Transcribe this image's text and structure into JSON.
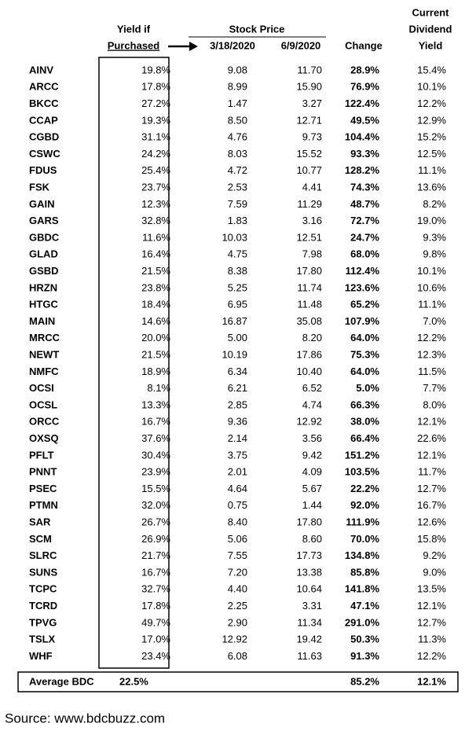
{
  "header": {
    "yield_line1": "Yield if",
    "yield_line2": "Purchased",
    "stock_price": "Stock Price",
    "date1": "3/18/2020",
    "date2": "6/9/2020",
    "change": "Change",
    "current_line1": "Current",
    "current_line2": "Dividend",
    "current_line3": "Yield"
  },
  "table": {
    "rows": [
      [
        "AINV",
        "19.8%",
        "9.08",
        "11.70",
        "28.9%",
        "15.4%"
      ],
      [
        "ARCC",
        "17.8%",
        "8.99",
        "15.90",
        "76.9%",
        "10.1%"
      ],
      [
        "BKCC",
        "27.2%",
        "1.47",
        "3.27",
        "122.4%",
        "12.2%"
      ],
      [
        "CCAP",
        "19.3%",
        "8.50",
        "12.71",
        "49.5%",
        "12.9%"
      ],
      [
        "CGBD",
        "31.1%",
        "4.76",
        "9.73",
        "104.4%",
        "15.2%"
      ],
      [
        "CSWC",
        "24.2%",
        "8.03",
        "15.52",
        "93.3%",
        "12.5%"
      ],
      [
        "FDUS",
        "25.4%",
        "4.72",
        "10.77",
        "128.2%",
        "11.1%"
      ],
      [
        "FSK",
        "23.7%",
        "2.53",
        "4.41",
        "74.3%",
        "13.6%"
      ],
      [
        "GAIN",
        "12.3%",
        "7.59",
        "11.29",
        "48.7%",
        "8.2%"
      ],
      [
        "GARS",
        "32.8%",
        "1.83",
        "3.16",
        "72.7%",
        "19.0%"
      ],
      [
        "GBDC",
        "11.6%",
        "10.03",
        "12.51",
        "24.7%",
        "9.3%"
      ],
      [
        "GLAD",
        "16.4%",
        "4.75",
        "7.98",
        "68.0%",
        "9.8%"
      ],
      [
        "GSBD",
        "21.5%",
        "8.38",
        "17.80",
        "112.4%",
        "10.1%"
      ],
      [
        "HRZN",
        "23.8%",
        "5.25",
        "11.74",
        "123.6%",
        "10.6%"
      ],
      [
        "HTGC",
        "18.4%",
        "6.95",
        "11.48",
        "65.2%",
        "11.1%"
      ],
      [
        "MAIN",
        "14.6%",
        "16.87",
        "35.08",
        "107.9%",
        "7.0%"
      ],
      [
        "MRCC",
        "20.0%",
        "5.00",
        "8.20",
        "64.0%",
        "12.2%"
      ],
      [
        "NEWT",
        "21.5%",
        "10.19",
        "17.86",
        "75.3%",
        "12.3%"
      ],
      [
        "NMFC",
        "18.9%",
        "6.34",
        "10.40",
        "64.0%",
        "11.5%"
      ],
      [
        "OCSI",
        "8.1%",
        "6.21",
        "6.52",
        "5.0%",
        "7.7%"
      ],
      [
        "OCSL",
        "13.3%",
        "2.85",
        "4.74",
        "66.3%",
        "8.0%"
      ],
      [
        "ORCC",
        "16.7%",
        "9.36",
        "12.92",
        "38.0%",
        "12.1%"
      ],
      [
        "OXSQ",
        "37.6%",
        "2.14",
        "3.56",
        "66.4%",
        "22.6%"
      ],
      [
        "PFLT",
        "30.4%",
        "3.75",
        "9.42",
        "151.2%",
        "12.1%"
      ],
      [
        "PNNT",
        "23.9%",
        "2.01",
        "4.09",
        "103.5%",
        "11.7%"
      ],
      [
        "PSEC",
        "15.5%",
        "4.64",
        "5.67",
        "22.2%",
        "12.7%"
      ],
      [
        "PTMN",
        "32.0%",
        "0.75",
        "1.44",
        "92.0%",
        "16.7%"
      ],
      [
        "SAR",
        "26.7%",
        "8.40",
        "17.80",
        "111.9%",
        "12.6%"
      ],
      [
        "SCM",
        "26.9%",
        "5.06",
        "8.60",
        "70.0%",
        "15.8%"
      ],
      [
        "SLRC",
        "21.7%",
        "7.55",
        "17.73",
        "134.8%",
        "9.2%"
      ],
      [
        "SUNS",
        "16.7%",
        "7.20",
        "13.38",
        "85.8%",
        "9.0%"
      ],
      [
        "TCPC",
        "32.7%",
        "4.40",
        "10.64",
        "141.8%",
        "13.5%"
      ],
      [
        "TCRD",
        "17.8%",
        "2.25",
        "3.31",
        "47.1%",
        "12.1%"
      ],
      [
        "TPVG",
        "49.7%",
        "2.90",
        "11.34",
        "291.0%",
        "12.7%"
      ],
      [
        "TSLX",
        "17.0%",
        "12.92",
        "19.42",
        "50.3%",
        "11.3%"
      ],
      [
        "WHF",
        "23.4%",
        "6.08",
        "11.63",
        "91.3%",
        "12.2%"
      ]
    ],
    "average": {
      "label": "Average BDC",
      "yield": "22.5%",
      "change": "85.2%",
      "current": "12.1%"
    }
  },
  "source": "Source: www.bdcbuzz.com"
}
